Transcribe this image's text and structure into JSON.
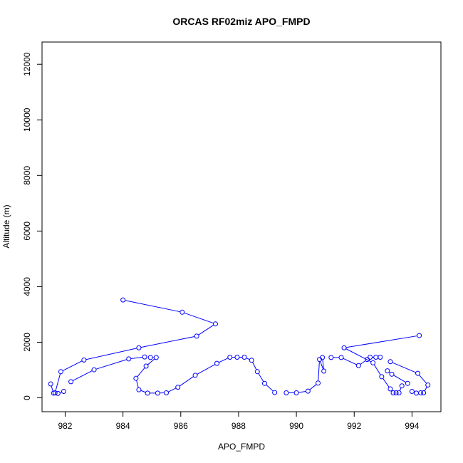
{
  "chart_data": {
    "type": "line",
    "title": "ORCAS RF02miz APO_FMPD",
    "xlabel": "APO_FMPD",
    "ylabel": "Altitude (m)",
    "xlim": [
      981.2,
      995.0
    ],
    "ylim": [
      -500,
      12800
    ],
    "x_ticks": [
      982,
      984,
      986,
      988,
      990,
      992,
      994
    ],
    "x_tick_labels": [
      "982",
      "984",
      "986",
      "988",
      "990",
      "992",
      "994"
    ],
    "y_ticks": [
      0,
      2000,
      4000,
      6000,
      8000,
      10000,
      12000
    ],
    "y_tick_labels": [
      "0",
      "2000",
      "4000",
      "6000",
      "8000",
      "10000",
      "12000"
    ],
    "grid": false,
    "legend": "none",
    "color": "#0000ff",
    "markers": "open-circle",
    "segments": [
      {
        "x": [
          984.0,
          986.05,
          987.2,
          986.55,
          984.55,
          982.65,
          981.85,
          981.65,
          981.75,
          981.95
        ],
        "y": [
          3520,
          3080,
          2660,
          2220,
          1800,
          1360,
          940,
          180,
          160,
          230
        ]
      },
      {
        "x": [
          981.5,
          981.6
        ],
        "y": [
          500,
          170
        ]
      },
      {
        "x": [
          982.2,
          983.0,
          984.2,
          984.75
        ],
        "y": [
          580,
          1010,
          1400,
          1470
        ]
      },
      {
        "x": [
          984.95,
          985.15,
          984.8,
          984.45,
          984.55,
          984.85,
          985.2,
          985.5,
          985.9,
          986.5,
          987.25,
          987.7,
          987.95,
          988.2,
          988.45,
          988.65,
          988.9,
          989.25
        ],
        "y": [
          1450,
          1450,
          1140,
          700,
          290,
          170,
          170,
          180,
          380,
          810,
          1240,
          1460,
          1460,
          1460,
          1350,
          940,
          520,
          190
        ]
      },
      {
        "x": [
          989.65,
          990.0,
          990.4,
          990.75,
          990.8,
          990.95,
          990.9
        ],
        "y": [
          180,
          180,
          240,
          530,
          1380,
          960,
          1450
        ]
      },
      {
        "x": [
          991.2,
          991.55,
          992.15,
          992.45
        ],
        "y": [
          1450,
          1450,
          1160,
          1380
        ]
      },
      {
        "x": [
          994.25,
          991.65,
          992.65,
          992.95,
          993.25,
          993.35,
          993.45,
          993.55,
          993.65
        ],
        "y": [
          2240,
          1800,
          1260,
          760,
          320,
          180,
          180,
          180,
          430
        ]
      },
      {
        "x": [
          992.55,
          992.75,
          992.9
        ],
        "y": [
          1460,
          1460,
          1460
        ]
      },
      {
        "x": [
          993.15,
          993.3,
          993.85
        ],
        "y": [
          970,
          850,
          520
        ]
      },
      {
        "x": [
          993.25,
          994.2,
          994.55,
          994.4,
          994.3,
          994.15,
          994.0
        ],
        "y": [
          1300,
          880,
          460,
          180,
          180,
          170,
          230
        ]
      }
    ]
  }
}
